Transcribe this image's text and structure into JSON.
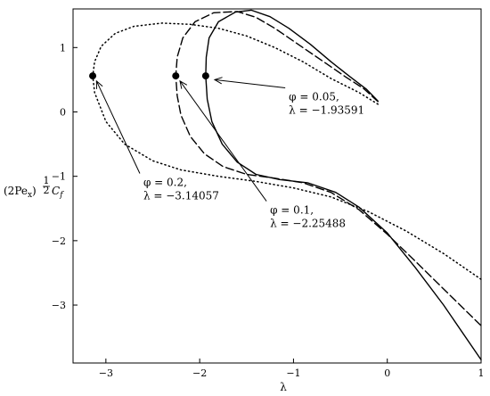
{
  "chart_data": {
    "type": "line",
    "title": "",
    "xlabel": "λ",
    "ylabel": {
      "prefix": "(2Pe",
      "sub": "x",
      "close": ")",
      "exp_num": "1",
      "exp_den": "2",
      "symbol": "C",
      "symbol_sub": "f"
    },
    "xlim": [
      -3.35,
      1.0
    ],
    "ylim": [
      -3.9,
      1.6
    ],
    "xticks": [
      -3,
      -2,
      -1,
      0,
      1
    ],
    "yticks": [
      -3,
      -2,
      -1,
      0,
      1
    ],
    "xtick_labels": [
      "−3",
      "−2",
      "−1",
      "0",
      "1"
    ],
    "ytick_labels": [
      "−3",
      "−2",
      "−1",
      "0",
      "1"
    ],
    "grid": false,
    "legend": "none",
    "series": [
      {
        "style": "dotted",
        "branch_upper": [
          [
            -3.14057,
            0.56
          ],
          [
            -3.12,
            0.78
          ],
          [
            -3.05,
            1.02
          ],
          [
            -2.9,
            1.22
          ],
          [
            -2.7,
            1.33
          ],
          [
            -2.4,
            1.38
          ],
          [
            -2.1,
            1.36
          ],
          [
            -1.8,
            1.3
          ],
          [
            -1.5,
            1.18
          ],
          [
            -1.2,
            1.0
          ],
          [
            -0.9,
            0.78
          ],
          [
            -0.6,
            0.52
          ],
          [
            -0.3,
            0.3
          ],
          [
            -0.1,
            0.12
          ]
        ],
        "branch_lower": [
          [
            -3.14057,
            0.56
          ],
          [
            -3.12,
            0.3
          ],
          [
            -3.0,
            -0.15
          ],
          [
            -2.8,
            -0.5
          ],
          [
            -2.5,
            -0.76
          ],
          [
            -2.2,
            -0.9
          ],
          [
            -1.8,
            -1.0
          ],
          [
            -1.4,
            -1.08
          ],
          [
            -1.0,
            -1.18
          ],
          [
            -0.6,
            -1.32
          ],
          [
            -0.2,
            -1.55
          ],
          [
            0.2,
            -1.85
          ],
          [
            0.6,
            -2.2
          ],
          [
            1.0,
            -2.6
          ]
        ]
      },
      {
        "style": "dashed",
        "branch_upper": [
          [
            -2.25488,
            0.56
          ],
          [
            -2.24,
            0.85
          ],
          [
            -2.18,
            1.15
          ],
          [
            -2.05,
            1.4
          ],
          [
            -1.85,
            1.54
          ],
          [
            -1.6,
            1.56
          ],
          [
            -1.4,
            1.47
          ],
          [
            -1.2,
            1.3
          ],
          [
            -0.95,
            1.05
          ],
          [
            -0.7,
            0.8
          ],
          [
            -0.45,
            0.55
          ],
          [
            -0.25,
            0.36
          ],
          [
            -0.1,
            0.16
          ]
        ],
        "branch_lower": [
          [
            -2.25488,
            0.56
          ],
          [
            -2.24,
            0.25
          ],
          [
            -2.2,
            -0.05
          ],
          [
            -2.1,
            -0.38
          ],
          [
            -1.95,
            -0.65
          ],
          [
            -1.75,
            -0.85
          ],
          [
            -1.5,
            -0.97
          ],
          [
            -1.2,
            -1.03
          ],
          [
            -0.9,
            -1.1
          ],
          [
            -0.6,
            -1.25
          ],
          [
            -0.3,
            -1.52
          ],
          [
            0.0,
            -1.9
          ],
          [
            0.3,
            -2.32
          ],
          [
            0.6,
            -2.75
          ],
          [
            1.0,
            -3.32
          ]
        ]
      },
      {
        "style": "solid",
        "branch_upper": [
          [
            -1.93591,
            0.56
          ],
          [
            -1.93,
            0.85
          ],
          [
            -1.9,
            1.15
          ],
          [
            -1.8,
            1.4
          ],
          [
            -1.62,
            1.55
          ],
          [
            -1.45,
            1.58
          ],
          [
            -1.25,
            1.48
          ],
          [
            -1.05,
            1.3
          ],
          [
            -0.82,
            1.05
          ],
          [
            -0.6,
            0.78
          ],
          [
            -0.4,
            0.55
          ],
          [
            -0.22,
            0.35
          ],
          [
            -0.1,
            0.17
          ]
        ],
        "branch_lower": [
          [
            -1.93591,
            0.56
          ],
          [
            -1.92,
            0.2
          ],
          [
            -1.87,
            -0.15
          ],
          [
            -1.76,
            -0.5
          ],
          [
            -1.6,
            -0.78
          ],
          [
            -1.4,
            -0.97
          ],
          [
            -1.15,
            -1.05
          ],
          [
            -0.85,
            -1.1
          ],
          [
            -0.55,
            -1.25
          ],
          [
            -0.3,
            -1.48
          ],
          [
            0.0,
            -1.88
          ],
          [
            0.3,
            -2.42
          ],
          [
            0.6,
            -3.0
          ],
          [
            1.0,
            -3.85
          ]
        ]
      }
    ],
    "critical_points": [
      {
        "x": -3.14057,
        "y": 0.56
      },
      {
        "x": -2.25488,
        "y": 0.56
      },
      {
        "x": -1.93591,
        "y": 0.56
      }
    ],
    "annotations": [
      {
        "line1": "φ = 0.2,",
        "line2": "λ = −3.14057",
        "text_at": [
          -2.6,
          -1.15
        ],
        "arrow_tip": [
          -3.1,
          0.48
        ]
      },
      {
        "line1": "φ = 0.1,",
        "line2": "λ = −2.25488",
        "text_at": [
          -1.25,
          -1.58
        ],
        "arrow_tip": [
          -2.21,
          0.48
        ]
      },
      {
        "line1": "φ = 0.05,",
        "line2": "λ = −1.93591",
        "text_at": [
          -1.05,
          0.18
        ],
        "arrow_tip": [
          -1.84,
          0.5
        ]
      }
    ]
  }
}
